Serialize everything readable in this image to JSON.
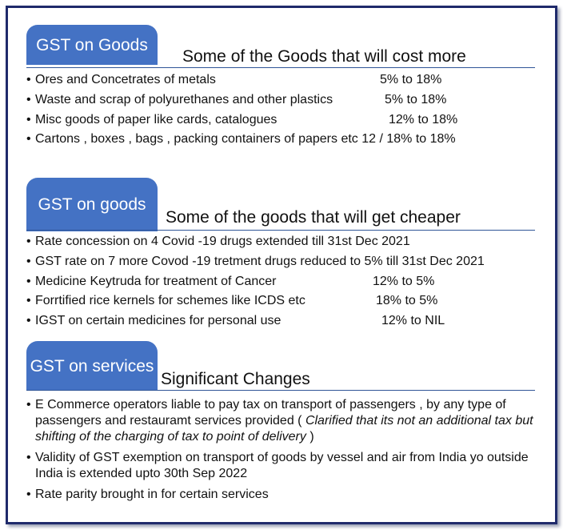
{
  "goods_cost_more": {
    "tab": "GST on Goods",
    "heading": "Some of the Goods that will cost more",
    "items": [
      {
        "text": "Ores and Concetrates of metals",
        "value": "5% to 18%"
      },
      {
        "text": "Waste and scrap of polyurethanes and other plastics",
        "value": "5% to 18%"
      },
      {
        "text": "Misc goods of paper like cards, catalogues",
        "value": "12% to 18%"
      },
      {
        "text": "Cartons , boxes , bags , packing containers of papers etc 12 / 18% to 18%",
        "value": ""
      }
    ]
  },
  "goods_cheaper": {
    "tab": "GST on goods",
    "heading": "Some of the goods that will get cheaper",
    "items": [
      {
        "text": "Rate concession on 4 Covid -19 drugs extended till 31st Dec 2021",
        "value": ""
      },
      {
        "text": "GST rate on 7 more Covod -19 tretment drugs reduced to 5% till 31st Dec 2021",
        "value": ""
      },
      {
        "text": "Medicine Keytruda for treatment of Cancer",
        "value": "12% to 5%"
      },
      {
        "text": "Forrtified rice kernels for schemes like ICDS etc",
        "value": "18% to 5%"
      },
      {
        "text": "IGST on certain medicines for personal use",
        "value": "12% to NIL"
      }
    ]
  },
  "services": {
    "tab": "GST on services",
    "heading": "Significant Changes",
    "items": [
      {
        "text": "E Commerce operators liable to pay tax on transport of passengers , by any type of passengers and restauramt services provided ( ",
        "italic": "Clarified that its not an additional tax but shifting of the charging of tax to point of delivery",
        "tail": " )"
      },
      {
        "text": "Validity of GST exemption on transport of goods by vessel and air from India yo outside India is extended upto 30th Sep 2022",
        "italic": "",
        "tail": ""
      },
      {
        "text": "Rate parity  brought in for certain services",
        "italic": "",
        "tail": ""
      }
    ]
  },
  "colors": {
    "tab_bg": "#4472c4",
    "rule": "#2f5597",
    "frame": "#1f2a6b"
  }
}
